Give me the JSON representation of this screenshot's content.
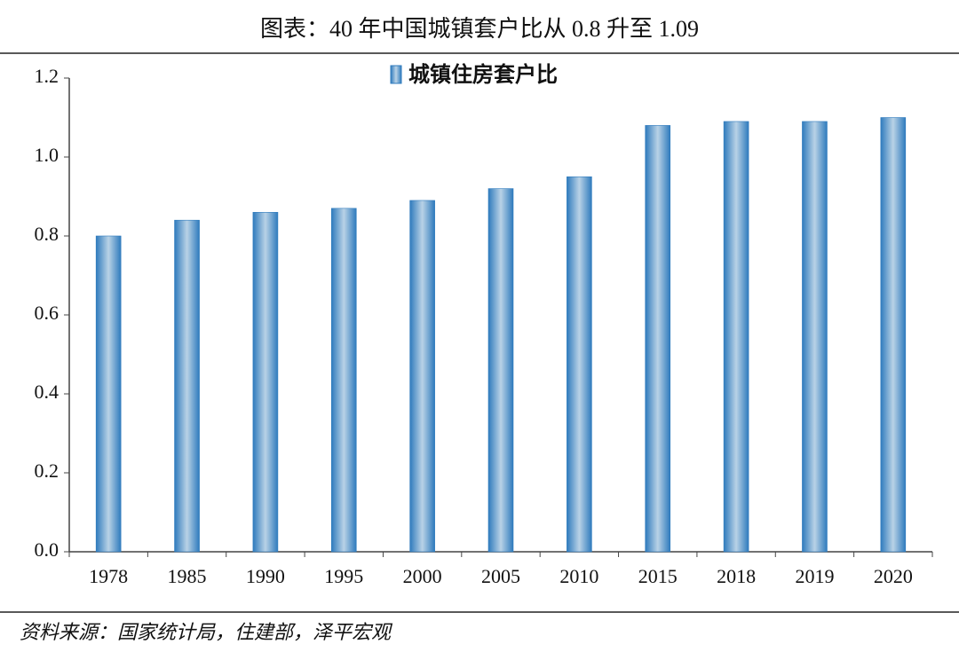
{
  "chart_data": {
    "type": "bar",
    "title": "图表：40 年中国城镇套户比从 0.8 升至 1.09",
    "categories": [
      "1978",
      "1985",
      "1990",
      "1995",
      "2000",
      "2005",
      "2010",
      "2015",
      "2018",
      "2019",
      "2020"
    ],
    "series": [
      {
        "name": "城镇住房套户比",
        "color": "#2f7bbd",
        "values": [
          0.8,
          0.84,
          0.86,
          0.87,
          0.89,
          0.92,
          0.95,
          1.08,
          1.09,
          1.09,
          1.1
        ]
      }
    ],
    "ylim": [
      0,
      1.2
    ],
    "yticks": [
      {
        "value": 0,
        "label": "0.0"
      },
      0.2,
      0.4,
      0.6,
      0.8,
      {
        "value": 1,
        "label": "1.0"
      },
      1.2
    ],
    "legend": "top",
    "source": "资料来源：国家统计局，住建部，泽平宏观"
  }
}
